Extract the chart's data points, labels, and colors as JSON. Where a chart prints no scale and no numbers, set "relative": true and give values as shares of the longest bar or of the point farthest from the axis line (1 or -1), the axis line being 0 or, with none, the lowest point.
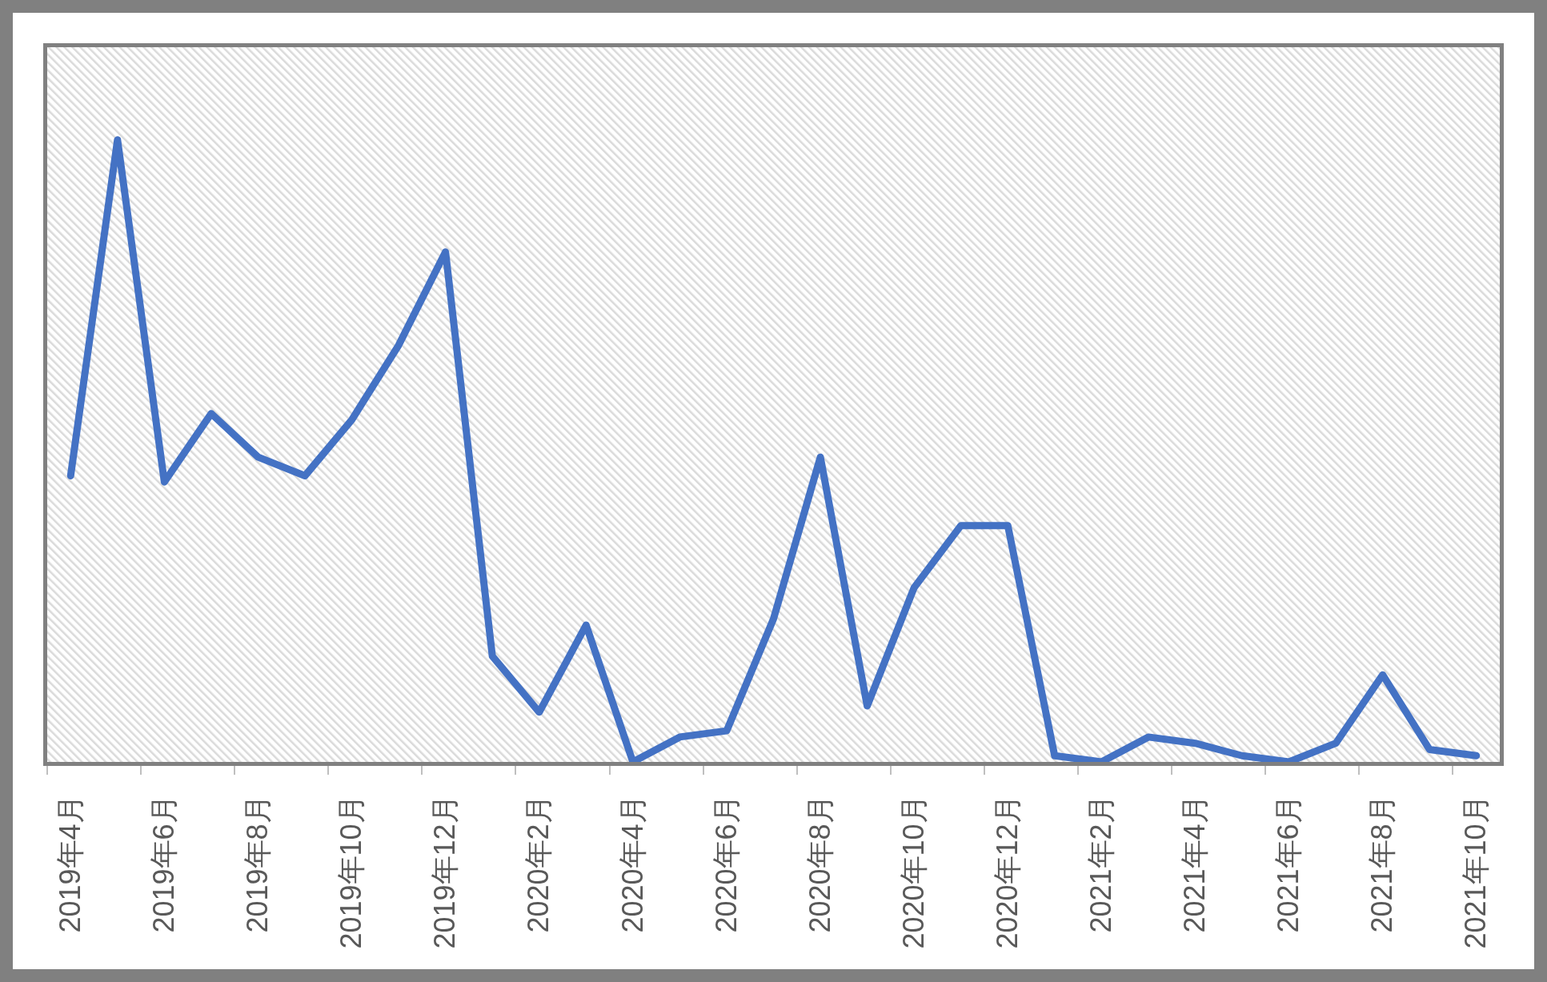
{
  "chart_data": {
    "type": "line",
    "relative": true,
    "tick_labels": "x",
    "categories": [
      "2019年4月",
      null,
      "2019年6月",
      null,
      "2019年8月",
      null,
      "2019年10月",
      null,
      "2019年12月",
      null,
      "2020年2月",
      null,
      "2020年4月",
      null,
      "2020年6月",
      null,
      "2020年8月",
      null,
      "2020年10月",
      null,
      "2020年12月",
      null,
      "2021年2月",
      null,
      "2021年4月",
      null,
      "2021年6月",
      null,
      "2021年8月",
      null,
      "2021年10月"
    ],
    "series": [
      {
        "color": "#4472c4",
        "values": [
          0.46,
          1,
          0.45,
          0.56,
          0.49,
          0.46,
          0.55,
          0.67,
          0.82,
          0.17,
          0.08,
          0.22,
          0,
          0.04,
          0.05,
          0.23,
          0.49,
          0.09,
          0.28,
          0.38,
          0.38,
          0.01,
          0,
          0.04,
          0.03,
          0.01,
          0,
          0.03,
          0.14,
          0.02,
          0.01
        ]
      }
    ]
  }
}
